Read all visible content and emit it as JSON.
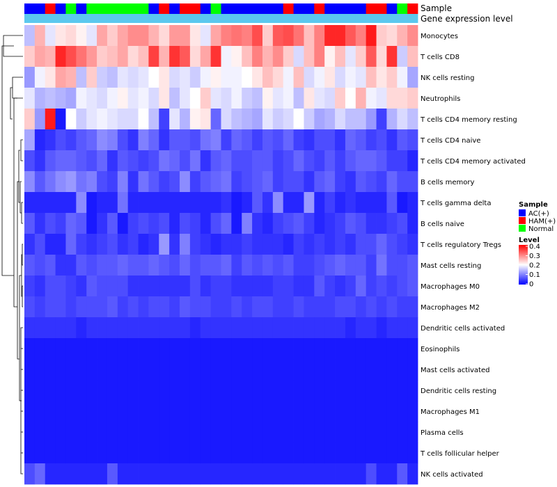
{
  "chart_data": {
    "type": "heatmap",
    "rows": [
      "Monocytes",
      "T cells CD8",
      "NK cells resting",
      "Neutrophils",
      "T cells CD4 memory resting",
      "T cells CD4 naive",
      "T cells CD4 memory activated",
      "B cells memory",
      "T cells gamma delta",
      "B cells naive",
      "T cells regulatory  Tregs",
      "Mast cells resting",
      "Macrophages M0",
      "Macrophages M2",
      "Dendritic cells activated",
      "Eosinophils",
      "Mast cells activated",
      "Dendritic cells resting",
      "Macrophages M1",
      "Plasma cells",
      "T cells follicular helper",
      "NK cells activated"
    ],
    "n_columns": 38,
    "sample_groups": [
      "AC(+)",
      "AC(+)",
      "HAM(+)",
      "AC(+)",
      "Normal",
      "AC(+)",
      "Normal",
      "Normal",
      "Normal",
      "Normal",
      "Normal",
      "Normal",
      "AC(+)",
      "HAM(+)",
      "AC(+)",
      "HAM(+)",
      "HAM(+)",
      "AC(+)",
      "Normal",
      "AC(+)",
      "AC(+)",
      "AC(+)",
      "AC(+)",
      "AC(+)",
      "AC(+)",
      "HAM(+)",
      "AC(+)",
      "AC(+)",
      "HAM(+)",
      "AC(+)",
      "AC(+)",
      "AC(+)",
      "AC(+)",
      "HAM(+)",
      "HAM(+)",
      "AC(+)",
      "Normal",
      "HAM(+)"
    ],
    "gene_expression_annotation": "Gene expression level",
    "annotation_labels": {
      "sample": "Sample",
      "gene_expression": "Gene expression level"
    },
    "legend": {
      "sample_title": "Sample",
      "sample_entries": [
        {
          "label": "AC(+)",
          "color": "#0000ff"
        },
        {
          "label": "HAM(+)",
          "color": "#ff0000"
        },
        {
          "label": "Normal",
          "color": "#00ff00"
        }
      ],
      "level_title": "Level",
      "level_ticks": [
        "0.4",
        "0.3",
        "0.2",
        "0.1",
        "0"
      ],
      "level_range": [
        0,
        0.4
      ],
      "level_colors": [
        "#0000ff",
        "#ffffff",
        "#ff0000"
      ]
    },
    "annotation_color": "#5bc8ee",
    "values": [
      [
        0.15,
        0.26,
        0.18,
        0.22,
        0.23,
        0.21,
        0.18,
        0.27,
        0.24,
        0.27,
        0.29,
        0.29,
        0.26,
        0.23,
        0.28,
        0.28,
        0.22,
        0.18,
        0.27,
        0.3,
        0.31,
        0.3,
        0.34,
        0.24,
        0.33,
        0.34,
        0.31,
        0.25,
        0.3,
        0.37,
        0.37,
        0.33,
        0.3,
        0.38,
        0.24,
        0.23,
        0.26,
        0.29
      ],
      [
        0.24,
        0.27,
        0.26,
        0.37,
        0.34,
        0.31,
        0.28,
        0.24,
        0.25,
        0.27,
        0.23,
        0.25,
        0.35,
        0.26,
        0.36,
        0.33,
        0.23,
        0.27,
        0.36,
        0.19,
        0.21,
        0.25,
        0.3,
        0.26,
        0.29,
        0.24,
        0.17,
        0.25,
        0.3,
        0.21,
        0.25,
        0.18,
        0.24,
        0.33,
        0.23,
        0.36,
        0.16,
        0.25
      ],
      [
        0.12,
        0.19,
        0.22,
        0.27,
        0.26,
        0.15,
        0.24,
        0.16,
        0.15,
        0.18,
        0.17,
        0.18,
        0.2,
        0.22,
        0.17,
        0.18,
        0.16,
        0.19,
        0.21,
        0.19,
        0.19,
        0.2,
        0.22,
        0.25,
        0.23,
        0.19,
        0.25,
        0.17,
        0.19,
        0.22,
        0.17,
        0.19,
        0.18,
        0.25,
        0.22,
        0.24,
        0.19,
        0.13
      ],
      [
        0.18,
        0.14,
        0.15,
        0.14,
        0.13,
        0.19,
        0.18,
        0.17,
        0.19,
        0.21,
        0.18,
        0.19,
        0.17,
        0.22,
        0.15,
        0.18,
        0.2,
        0.24,
        0.18,
        0.17,
        0.19,
        0.16,
        0.15,
        0.21,
        0.18,
        0.19,
        0.15,
        0.22,
        0.18,
        0.17,
        0.24,
        0.2,
        0.26,
        0.19,
        0.18,
        0.23,
        0.23,
        0.24
      ],
      [
        0.24,
        0.12,
        0.38,
        0.02,
        0.2,
        0.16,
        0.18,
        0.19,
        0.18,
        0.17,
        0.17,
        0.2,
        0.15,
        0.05,
        0.18,
        0.14,
        0.21,
        0.22,
        0.08,
        0.17,
        0.15,
        0.14,
        0.13,
        0.18,
        0.16,
        0.17,
        0.2,
        0.16,
        0.13,
        0.14,
        0.17,
        0.15,
        0.15,
        0.12,
        0.05,
        0.14,
        0.17,
        0.15
      ],
      [
        0.13,
        0.03,
        0.04,
        0.06,
        0.05,
        0.07,
        0.08,
        0.11,
        0.1,
        0.06,
        0.04,
        0.1,
        0.08,
        0.04,
        0.07,
        0.07,
        0.06,
        0.09,
        0.1,
        0.05,
        0.08,
        0.07,
        0.05,
        0.07,
        0.06,
        0.08,
        0.05,
        0.04,
        0.06,
        0.06,
        0.04,
        0.08,
        0.07,
        0.05,
        0.06,
        0.04,
        0.07,
        0.06
      ],
      [
        0.06,
        0.04,
        0.07,
        0.08,
        0.08,
        0.07,
        0.06,
        0.08,
        0.04,
        0.07,
        0.06,
        0.05,
        0.06,
        0.09,
        0.08,
        0.06,
        0.09,
        0.04,
        0.07,
        0.08,
        0.06,
        0.06,
        0.07,
        0.07,
        0.05,
        0.06,
        0.08,
        0.06,
        0.05,
        0.07,
        0.05,
        0.07,
        0.08,
        0.08,
        0.07,
        0.05,
        0.05,
        0.03
      ],
      [
        0.11,
        0.07,
        0.09,
        0.11,
        0.12,
        0.09,
        0.1,
        0.06,
        0.05,
        0.1,
        0.04,
        0.09,
        0.07,
        0.05,
        0.06,
        0.11,
        0.05,
        0.07,
        0.08,
        0.09,
        0.05,
        0.06,
        0.07,
        0.08,
        0.05,
        0.06,
        0.06,
        0.04,
        0.07,
        0.08,
        0.05,
        0.04,
        0.07,
        0.06,
        0.05,
        0.08,
        0.06,
        0.06
      ],
      [
        0.03,
        0.03,
        0.03,
        0.03,
        0.03,
        0.11,
        0.02,
        0.03,
        0.03,
        0.09,
        0.03,
        0.03,
        0.03,
        0.03,
        0.03,
        0.03,
        0.03,
        0.03,
        0.03,
        0.04,
        0.02,
        0.03,
        0.07,
        0.04,
        0.11,
        0.03,
        0.03,
        0.12,
        0.03,
        0.05,
        0.03,
        0.04,
        0.03,
        0.03,
        0.03,
        0.07,
        0.02,
        0.03
      ],
      [
        0.07,
        0.04,
        0.06,
        0.05,
        0.08,
        0.07,
        0.02,
        0.04,
        0.07,
        0.02,
        0.05,
        0.06,
        0.05,
        0.06,
        0.03,
        0.06,
        0.05,
        0.03,
        0.06,
        0.08,
        0.02,
        0.1,
        0.04,
        0.03,
        0.05,
        0.06,
        0.07,
        0.05,
        0.03,
        0.04,
        0.05,
        0.07,
        0.06,
        0.04,
        0.04,
        0.05,
        0.06,
        0.03
      ],
      [
        0.04,
        0.06,
        0.03,
        0.03,
        0.08,
        0.05,
        0.04,
        0.05,
        0.06,
        0.04,
        0.05,
        0.03,
        0.04,
        0.12,
        0.04,
        0.1,
        0.05,
        0.04,
        0.03,
        0.04,
        0.04,
        0.05,
        0.04,
        0.04,
        0.04,
        0.03,
        0.05,
        0.04,
        0.05,
        0.04,
        0.05,
        0.04,
        0.06,
        0.06,
        0.08,
        0.06,
        0.05,
        0.04
      ],
      [
        0.07,
        0.06,
        0.07,
        0.04,
        0.04,
        0.07,
        0.06,
        0.07,
        0.07,
        0.08,
        0.07,
        0.07,
        0.08,
        0.07,
        0.06,
        0.08,
        0.06,
        0.07,
        0.07,
        0.08,
        0.05,
        0.07,
        0.06,
        0.07,
        0.06,
        0.07,
        0.05,
        0.05,
        0.06,
        0.07,
        0.08,
        0.07,
        0.07,
        0.05,
        0.09,
        0.06,
        0.06,
        0.07
      ],
      [
        0.05,
        0.04,
        0.06,
        0.06,
        0.05,
        0.04,
        0.07,
        0.06,
        0.06,
        0.06,
        0.04,
        0.04,
        0.04,
        0.04,
        0.04,
        0.04,
        0.06,
        0.04,
        0.05,
        0.05,
        0.04,
        0.04,
        0.04,
        0.04,
        0.05,
        0.05,
        0.04,
        0.04,
        0.07,
        0.05,
        0.04,
        0.05,
        0.08,
        0.05,
        0.06,
        0.05,
        0.06,
        0.07
      ],
      [
        0.06,
        0.05,
        0.06,
        0.06,
        0.05,
        0.06,
        0.06,
        0.06,
        0.07,
        0.05,
        0.06,
        0.05,
        0.06,
        0.06,
        0.05,
        0.07,
        0.06,
        0.06,
        0.05,
        0.05,
        0.06,
        0.05,
        0.06,
        0.06,
        0.05,
        0.05,
        0.06,
        0.05,
        0.05,
        0.05,
        0.06,
        0.06,
        0.05,
        0.06,
        0.05,
        0.06,
        0.05,
        0.05
      ],
      [
        0.04,
        0.04,
        0.04,
        0.04,
        0.04,
        0.03,
        0.04,
        0.04,
        0.04,
        0.04,
        0.04,
        0.04,
        0.04,
        0.04,
        0.04,
        0.04,
        0.03,
        0.04,
        0.04,
        0.04,
        0.04,
        0.04,
        0.04,
        0.04,
        0.04,
        0.04,
        0.04,
        0.04,
        0.04,
        0.04,
        0.04,
        0.03,
        0.04,
        0.04,
        0.03,
        0.04,
        0.04,
        0.04
      ],
      [
        0.02,
        0.02,
        0.02,
        0.02,
        0.02,
        0.02,
        0.02,
        0.02,
        0.02,
        0.02,
        0.02,
        0.02,
        0.02,
        0.02,
        0.02,
        0.02,
        0.02,
        0.02,
        0.02,
        0.02,
        0.02,
        0.02,
        0.02,
        0.02,
        0.02,
        0.02,
        0.02,
        0.02,
        0.02,
        0.02,
        0.02,
        0.02,
        0.02,
        0.02,
        0.02,
        0.02,
        0.02,
        0.02
      ],
      [
        0.02,
        0.02,
        0.02,
        0.02,
        0.02,
        0.02,
        0.02,
        0.02,
        0.02,
        0.02,
        0.02,
        0.02,
        0.02,
        0.02,
        0.02,
        0.02,
        0.02,
        0.02,
        0.02,
        0.02,
        0.02,
        0.02,
        0.02,
        0.02,
        0.02,
        0.02,
        0.02,
        0.02,
        0.02,
        0.02,
        0.02,
        0.02,
        0.02,
        0.02,
        0.02,
        0.02,
        0.02,
        0.02
      ],
      [
        0.02,
        0.02,
        0.02,
        0.02,
        0.02,
        0.02,
        0.02,
        0.02,
        0.02,
        0.02,
        0.02,
        0.02,
        0.02,
        0.02,
        0.02,
        0.02,
        0.02,
        0.02,
        0.02,
        0.02,
        0.02,
        0.02,
        0.02,
        0.02,
        0.02,
        0.02,
        0.02,
        0.02,
        0.02,
        0.02,
        0.02,
        0.02,
        0.02,
        0.02,
        0.02,
        0.02,
        0.02,
        0.02
      ],
      [
        0.02,
        0.02,
        0.02,
        0.02,
        0.02,
        0.02,
        0.02,
        0.02,
        0.02,
        0.02,
        0.02,
        0.02,
        0.02,
        0.02,
        0.02,
        0.02,
        0.02,
        0.02,
        0.02,
        0.02,
        0.02,
        0.02,
        0.02,
        0.02,
        0.02,
        0.02,
        0.02,
        0.02,
        0.02,
        0.02,
        0.02,
        0.02,
        0.02,
        0.02,
        0.02,
        0.02,
        0.02,
        0.02
      ],
      [
        0.02,
        0.02,
        0.02,
        0.02,
        0.02,
        0.02,
        0.02,
        0.02,
        0.02,
        0.02,
        0.02,
        0.02,
        0.02,
        0.02,
        0.02,
        0.02,
        0.02,
        0.02,
        0.02,
        0.02,
        0.02,
        0.02,
        0.02,
        0.02,
        0.02,
        0.02,
        0.02,
        0.02,
        0.02,
        0.02,
        0.02,
        0.02,
        0.02,
        0.02,
        0.02,
        0.02,
        0.02,
        0.02
      ],
      [
        0.02,
        0.02,
        0.02,
        0.02,
        0.02,
        0.02,
        0.02,
        0.02,
        0.02,
        0.02,
        0.02,
        0.02,
        0.02,
        0.02,
        0.02,
        0.02,
        0.02,
        0.02,
        0.02,
        0.02,
        0.02,
        0.02,
        0.02,
        0.02,
        0.02,
        0.02,
        0.02,
        0.02,
        0.02,
        0.02,
        0.02,
        0.02,
        0.02,
        0.02,
        0.02,
        0.02,
        0.02,
        0.02
      ],
      [
        0.06,
        0.08,
        0.03,
        0.03,
        0.03,
        0.03,
        0.03,
        0.03,
        0.07,
        0.03,
        0.03,
        0.03,
        0.03,
        0.03,
        0.03,
        0.03,
        0.03,
        0.03,
        0.03,
        0.03,
        0.03,
        0.03,
        0.03,
        0.03,
        0.03,
        0.03,
        0.03,
        0.03,
        0.03,
        0.03,
        0.03,
        0.03,
        0.03,
        0.06,
        0.03,
        0.03,
        0.07,
        0.03
      ]
    ]
  }
}
